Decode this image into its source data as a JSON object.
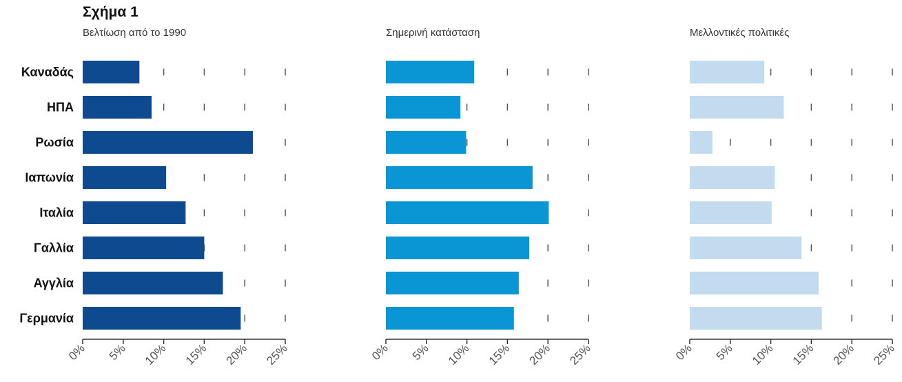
{
  "figure_title": "Σχήμα 1",
  "colors": {
    "panel1": "#0d4a8f",
    "panel2": "#0a95d4",
    "panel3": "#c2dbef",
    "tick": "#555555",
    "axis": "#333333"
  },
  "chart_data": {
    "type": "bar",
    "orientation": "horizontal",
    "categories": [
      "Καναδάς",
      "ΗΠΑ",
      "Ρωσία",
      "Ιαπωνία",
      "Ιταλία",
      "Γαλλία",
      "Αγγλία",
      "Γερμανία"
    ],
    "xlim": [
      0,
      25
    ],
    "x_ticks": [
      0,
      5,
      10,
      15,
      20,
      25
    ],
    "x_tick_labels": [
      "0%",
      "5%",
      "10%",
      "15%",
      "20%",
      "25%"
    ],
    "grid": "dashed vertical ticks",
    "series": [
      {
        "name": "Βελτίωση από το 1990",
        "values": [
          7,
          8.5,
          21,
          10.3,
          12.7,
          15,
          17.3,
          19.5
        ]
      },
      {
        "name": "Σημερινή κατάσταση",
        "values": [
          10.9,
          9.2,
          9.9,
          18.1,
          20.1,
          17.7,
          16.4,
          15.8
        ]
      },
      {
        "name": "Μελλοντικές πολιτικές",
        "values": [
          9.2,
          11.6,
          2.8,
          10.5,
          10.1,
          13.8,
          15.9,
          16.3
        ]
      }
    ]
  }
}
